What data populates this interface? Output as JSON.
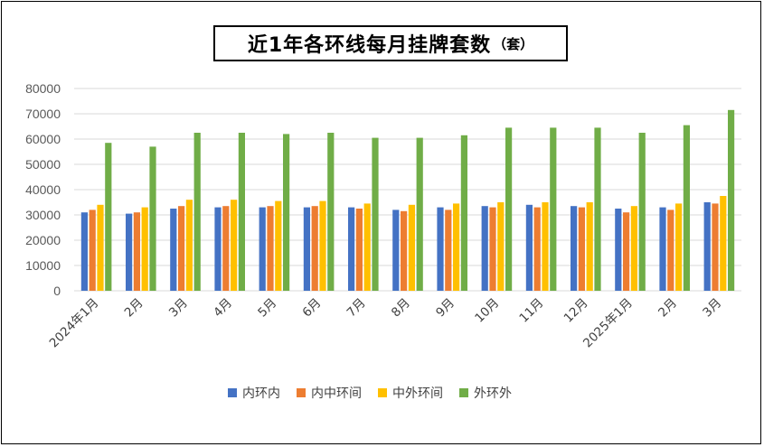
{
  "title": "近1年各环线每月挂牌套数",
  "title_unit": "（套）",
  "chart_data": {
    "type": "bar",
    "title": "近1年各环线每月挂牌套数（套）",
    "categories": [
      "2024年1月",
      "2月",
      "3月",
      "4月",
      "5月",
      "6月",
      "7月",
      "8月",
      "9月",
      "10月",
      "11月",
      "12月",
      "2025年1月",
      "2月",
      "3月"
    ],
    "series": [
      {
        "name": "内环内",
        "color": "#4472C4",
        "values": [
          31000,
          30500,
          32500,
          33000,
          33000,
          33000,
          33000,
          32000,
          33000,
          33500,
          34000,
          33500,
          32500,
          33000,
          35000
        ]
      },
      {
        "name": "内中环间",
        "color": "#ED7D31",
        "values": [
          32000,
          31000,
          33500,
          33500,
          33500,
          33500,
          32500,
          31500,
          32000,
          33000,
          33000,
          33000,
          31000,
          32000,
          34500
        ]
      },
      {
        "name": "中外环间",
        "color": "#FFC000",
        "values": [
          34000,
          33000,
          36000,
          36000,
          35500,
          35500,
          34500,
          34000,
          34500,
          35000,
          35000,
          35000,
          33500,
          34500,
          37500
        ]
      },
      {
        "name": "外环外",
        "color": "#70AD47",
        "values": [
          58500,
          57000,
          62500,
          62500,
          62000,
          62500,
          60500,
          60500,
          61500,
          64500,
          64500,
          64500,
          62500,
          65500,
          71500
        ]
      }
    ],
    "ylim": [
      0,
      80000
    ],
    "yticks": [
      0,
      10000,
      20000,
      30000,
      40000,
      50000,
      60000,
      70000,
      80000
    ],
    "grid": true,
    "legend_position": "bottom"
  }
}
